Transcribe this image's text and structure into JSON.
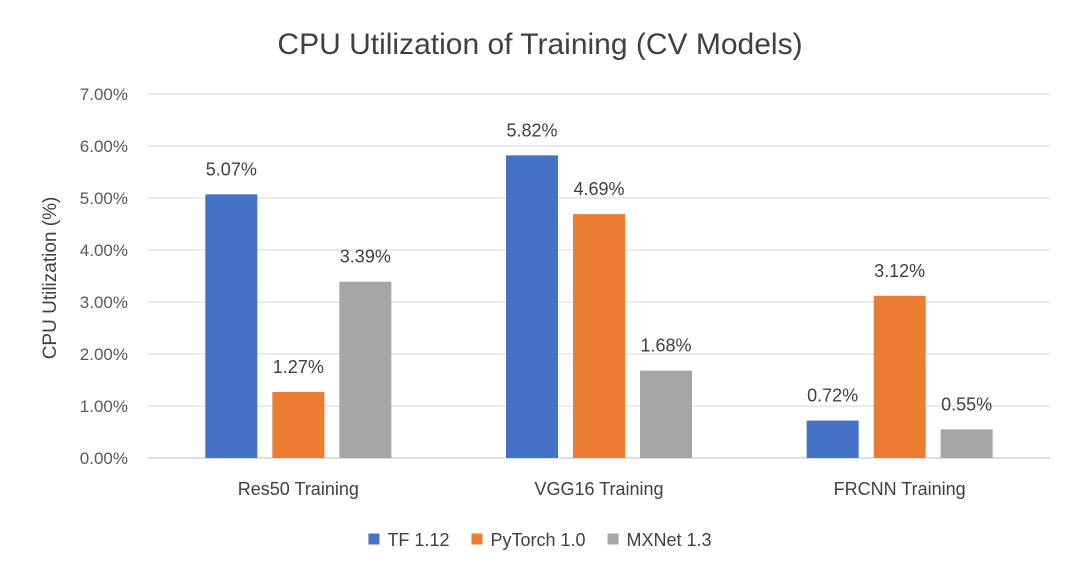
{
  "chart_data": {
    "type": "bar",
    "title": "CPU Utilization of Training (CV Models)",
    "xlabel": "",
    "ylabel": "CPU Utilization (%)",
    "ylim": [
      0,
      7
    ],
    "y_ticks": [
      {
        "value": 0,
        "label": "0.00%"
      },
      {
        "value": 1,
        "label": "1.00%"
      },
      {
        "value": 2,
        "label": "2.00%"
      },
      {
        "value": 3,
        "label": "3.00%"
      },
      {
        "value": 4,
        "label": "4.00%"
      },
      {
        "value": 5,
        "label": "5.00%"
      },
      {
        "value": 6,
        "label": "6.00%"
      },
      {
        "value": 7,
        "label": "7.00%"
      }
    ],
    "categories": [
      "Res50 Training",
      "VGG16 Training",
      "FRCNN Training"
    ],
    "series": [
      {
        "name": "TF 1.12",
        "color": "#4472c4",
        "values": [
          5.07,
          5.82,
          0.72
        ],
        "labels": [
          "5.07%",
          "5.82%",
          "0.72%"
        ]
      },
      {
        "name": "PyTorch 1.0",
        "color": "#ed7d31",
        "values": [
          1.27,
          4.69,
          3.12
        ],
        "labels": [
          "1.27%",
          "4.69%",
          "3.12%"
        ]
      },
      {
        "name": "MXNet 1.3",
        "color": "#a5a5a5",
        "values": [
          3.39,
          1.68,
          0.55
        ],
        "labels": [
          "3.39%",
          "1.68%",
          "0.55%"
        ]
      }
    ],
    "grid": true,
    "legend_position": "bottom"
  }
}
